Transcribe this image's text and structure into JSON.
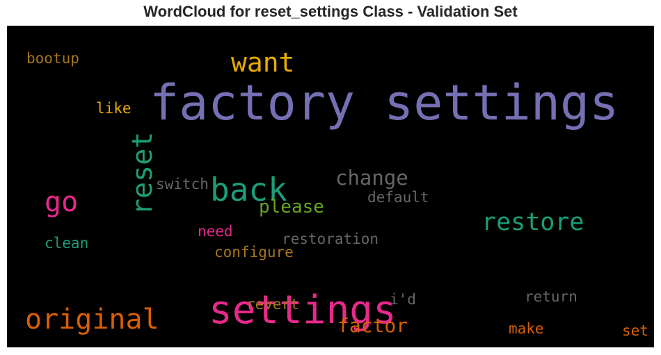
{
  "title": "WordCloud for reset_settings Class - Validation Set",
  "chart_data": {
    "type": "wordcloud",
    "title": "WordCloud for reset_settings Class - Validation Set",
    "background": "#000000",
    "words": [
      {
        "text": "factory settings",
        "color": "#7570b3",
        "rotate": 0
      },
      {
        "text": "settings",
        "color": "#e7298a",
        "rotate": 0
      },
      {
        "text": "back",
        "color": "#1b9e77",
        "rotate": 0
      },
      {
        "text": "reset",
        "color": "#1b9e77",
        "rotate": -90
      },
      {
        "text": "want",
        "color": "#e6ab02",
        "rotate": 0
      },
      {
        "text": "original",
        "color": "#d95f02",
        "rotate": 0
      },
      {
        "text": "go",
        "color": "#e7298a",
        "rotate": 0
      },
      {
        "text": "restore",
        "color": "#1b9e77",
        "rotate": 0
      },
      {
        "text": "change",
        "color": "#666666",
        "rotate": 0
      },
      {
        "text": "factor",
        "color": "#d95f02",
        "rotate": 0
      },
      {
        "text": "please",
        "color": "#66a61e",
        "rotate": 0
      },
      {
        "text": "switch",
        "color": "#666666",
        "rotate": 0
      },
      {
        "text": "default",
        "color": "#666666",
        "rotate": 0
      },
      {
        "text": "restoration",
        "color": "#666666",
        "rotate": 0
      },
      {
        "text": "need",
        "color": "#e7298a",
        "rotate": 0
      },
      {
        "text": "configure",
        "color": "#a6761d",
        "rotate": 0
      },
      {
        "text": "clean",
        "color": "#1b9e77",
        "rotate": 0
      },
      {
        "text": "bootup",
        "color": "#a6761d",
        "rotate": 0
      },
      {
        "text": "like",
        "color": "#e6ab02",
        "rotate": 0
      },
      {
        "text": "revert",
        "color": "#a6761d",
        "rotate": 0
      },
      {
        "text": "i'd",
        "color": "#666666",
        "rotate": 0
      },
      {
        "text": "return",
        "color": "#666666",
        "rotate": 0
      },
      {
        "text": "make",
        "color": "#d95f02",
        "rotate": 0
      },
      {
        "text": "set",
        "color": "#d95f02",
        "rotate": 0
      }
    ]
  }
}
